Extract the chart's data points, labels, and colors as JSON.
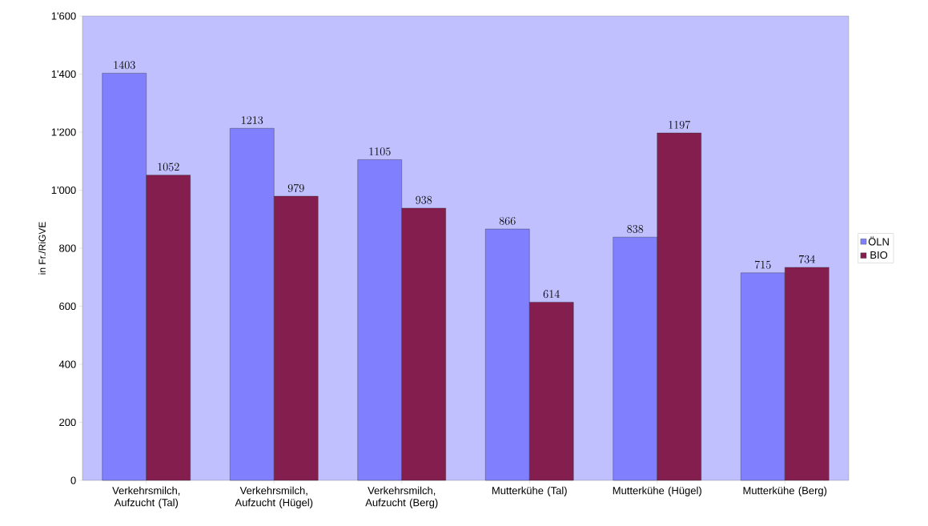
{
  "chart_data": {
    "type": "bar",
    "ylabel": "in Fr./RiGVE",
    "categories": [
      "Verkehrsmilch, Aufzucht (Tal)",
      "Verkehrsmilch, Aufzucht (Hügel)",
      "Verkehrsmilch, Aufzucht (Berg)",
      "Mutterkühe (Tal)",
      "Mutterkühe (Hügel)",
      "Mutterkühe (Berg)"
    ],
    "series": [
      {
        "name": "ÖLN",
        "color": "#8080ff",
        "values": [
          1403,
          1213,
          1105,
          866,
          838,
          715
        ]
      },
      {
        "name": "BIO",
        "color": "#841e4e",
        "values": [
          1052,
          979,
          938,
          614,
          1197,
          734
        ]
      }
    ],
    "ylim": [
      0,
      1600
    ],
    "yticks": [
      0,
      200,
      400,
      600,
      800,
      {
        "value": 1000,
        "label": "1'000"
      },
      {
        "value": 1200,
        "label": "1'200"
      },
      {
        "value": 1400,
        "label": "1'400"
      },
      {
        "value": 1600,
        "label": "1'600"
      }
    ],
    "data_labels": true,
    "legend": "right",
    "grid": false
  }
}
